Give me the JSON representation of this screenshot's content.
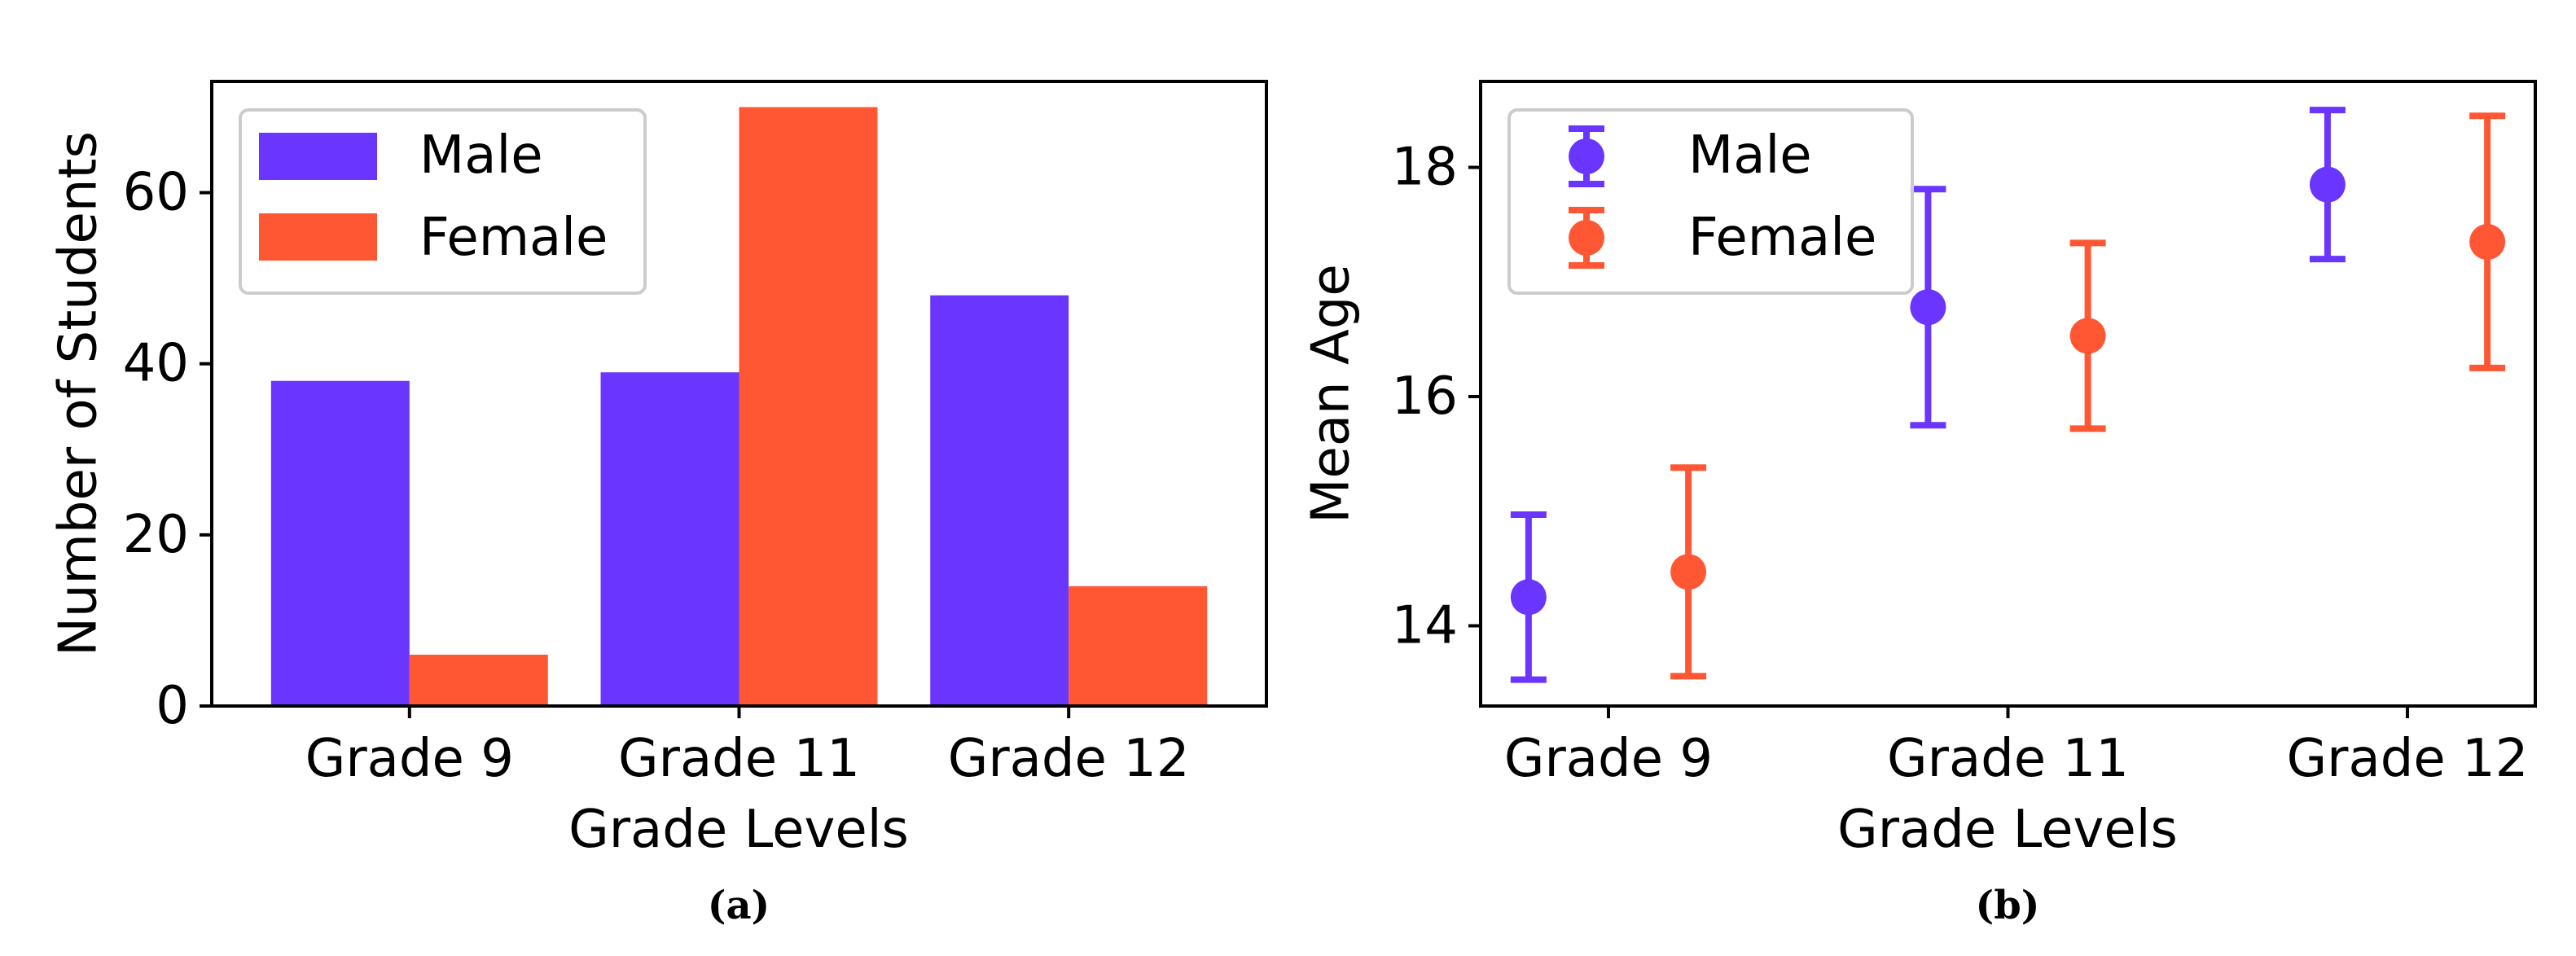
{
  "colors": {
    "male": "#6a35ff",
    "female": "#ff5733"
  },
  "chart_data": [
    {
      "id": "a",
      "type": "bar",
      "panel_label": "(a)",
      "title": "",
      "xlabel": "Grade Levels",
      "ylabel": "Number of Students",
      "categories": [
        "Grade 9",
        "Grade 11",
        "Grade 12"
      ],
      "series": [
        {
          "name": "Male",
          "values": [
            38,
            39,
            48
          ]
        },
        {
          "name": "Female",
          "values": [
            6,
            70,
            14
          ]
        }
      ],
      "ylim": [
        0,
        73
      ],
      "yticks": [
        0,
        20,
        40,
        60
      ],
      "legend": "upper-left",
      "grid": false
    },
    {
      "id": "b",
      "type": "errorbar",
      "panel_label": "(b)",
      "title": "",
      "xlabel": "Grade Levels",
      "ylabel": "Mean Age",
      "categories": [
        "Grade 9",
        "Grade 11",
        "Grade 12"
      ],
      "series": [
        {
          "name": "Male",
          "values": [
            14.25,
            16.78,
            17.85
          ],
          "errors": [
            0.72,
            1.03,
            0.65
          ]
        },
        {
          "name": "Female",
          "values": [
            14.47,
            16.53,
            17.35
          ],
          "errors": [
            0.91,
            0.81,
            1.1
          ]
        }
      ],
      "ylim": [
        13.3,
        18.75
      ],
      "yticks": [
        14,
        16,
        18
      ],
      "legend": "upper-left",
      "grid": false
    }
  ]
}
